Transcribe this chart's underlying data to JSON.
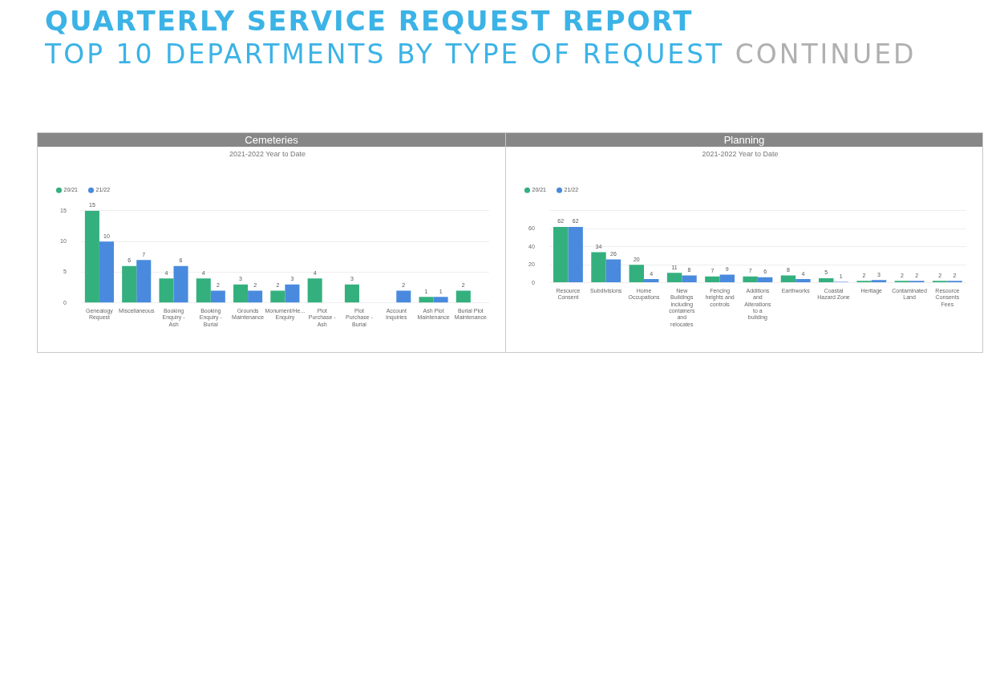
{
  "chart_data": [
    {
      "type": "bar",
      "title": "Cemeteries",
      "subtitle": "2021-2022 Year to Date",
      "annotations": [
        "QUARTERLY SERVICE REQUEST REPORT",
        "TOP 10 DEPARTMENTS BY TYPE OF REQUEST",
        "CONTINUED"
      ],
      "categories": [
        "Genealogy Request",
        "Miscellaneous",
        "Booking Enquiry - Ash",
        "Booking Enquiry - Burial",
        "Grounds Maintenance",
        "Monument/He... Enquiry",
        "Plot Purchase - Ash",
        "Plot Purchase - Burial",
        "Account Inquiries",
        "Ash Plot Maintenance",
        "Burial Plot Maintenance"
      ],
      "series": [
        {
          "name": "20/21",
          "color": "#34b07f",
          "values": [
            15,
            6,
            4,
            4,
            3,
            2,
            4,
            3,
            null,
            1,
            2
          ]
        },
        {
          "name": "21/22",
          "color": "#4a8ade",
          "values": [
            10,
            7,
            6,
            2,
            2,
            3,
            null,
            null,
            2,
            1,
            null
          ]
        }
      ],
      "ylim": [
        0,
        15
      ],
      "yticks": [
        0,
        5,
        10,
        15
      ],
      "grid": "y",
      "legend": "top left",
      "data_labels": true
    },
    {
      "type": "bar",
      "title": "Planning",
      "subtitle": "2021-2022 Year to Date",
      "categories": [
        "Resource Consent",
        "Subdivisions",
        "Home Occupations",
        "New Buildings including containers and relocates",
        "Fencing heights and controls",
        "Additions and Alterations to a building",
        "Earthworks",
        "Coastal Hazard Zone",
        "Heritage",
        "Contaminated Land",
        "Resource Consents Fees"
      ],
      "series": [
        {
          "name": "20/21",
          "color": "#34b07f",
          "values": [
            62,
            34,
            20,
            11,
            7,
            7,
            8,
            5,
            2,
            2,
            2
          ]
        },
        {
          "name": "21/22",
          "color": "#4a8ade",
          "values": [
            62,
            26,
            4,
            8,
            9,
            6,
            4,
            1,
            3,
            2,
            2
          ]
        }
      ],
      "ylim": [
        0,
        80
      ],
      "yticks": [
        0,
        20,
        40,
        60,
        {
          "value": 80,
          "label": null
        }
      ],
      "grid": "y",
      "legend": "top left",
      "data_labels": true
    }
  ]
}
